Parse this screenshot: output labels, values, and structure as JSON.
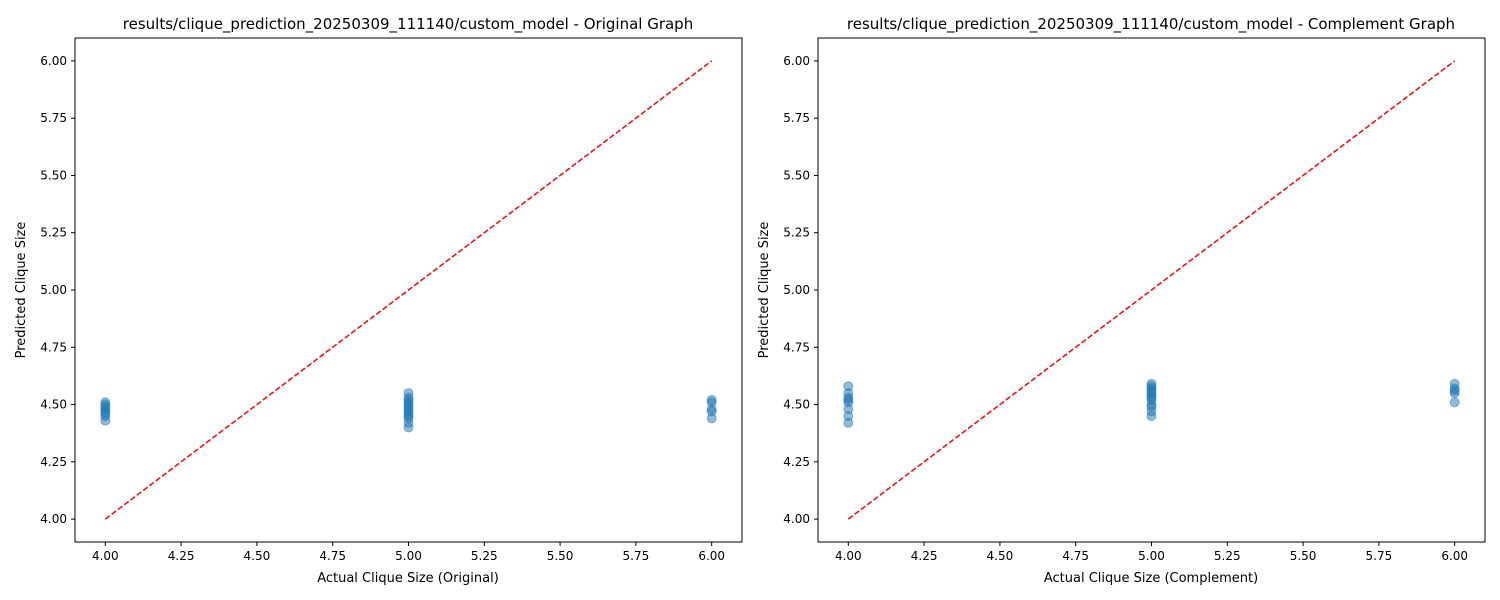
{
  "chart_data": [
    {
      "type": "scatter",
      "title": "results/clique_prediction_20250309_111140/custom_model - Original Graph",
      "xlabel": "Actual Clique Size (Original)",
      "ylabel": "Predicted Clique Size",
      "xlim": [
        3.9,
        6.1
      ],
      "ylim": [
        3.9,
        6.1
      ],
      "xticks": [
        "4.00",
        "4.25",
        "4.50",
        "4.75",
        "5.00",
        "5.25",
        "5.50",
        "5.75",
        "6.00"
      ],
      "yticks": [
        "4.00",
        "4.25",
        "4.50",
        "4.75",
        "5.00",
        "5.25",
        "5.50",
        "5.75",
        "6.00"
      ],
      "grid": false,
      "points": [
        {
          "x": 4,
          "y": 4.43
        },
        {
          "x": 4,
          "y": 4.45
        },
        {
          "x": 4,
          "y": 4.46
        },
        {
          "x": 4,
          "y": 4.47
        },
        {
          "x": 4,
          "y": 4.48
        },
        {
          "x": 4,
          "y": 4.49
        },
        {
          "x": 4,
          "y": 4.5
        },
        {
          "x": 4,
          "y": 4.51
        },
        {
          "x": 5,
          "y": 4.4
        },
        {
          "x": 5,
          "y": 4.42
        },
        {
          "x": 5,
          "y": 4.44
        },
        {
          "x": 5,
          "y": 4.45
        },
        {
          "x": 5,
          "y": 4.46
        },
        {
          "x": 5,
          "y": 4.47
        },
        {
          "x": 5,
          "y": 4.48
        },
        {
          "x": 5,
          "y": 4.49
        },
        {
          "x": 5,
          "y": 4.5
        },
        {
          "x": 5,
          "y": 4.51
        },
        {
          "x": 5,
          "y": 4.52
        },
        {
          "x": 5,
          "y": 4.53
        },
        {
          "x": 5,
          "y": 4.55
        },
        {
          "x": 6,
          "y": 4.44
        },
        {
          "x": 6,
          "y": 4.47
        },
        {
          "x": 6,
          "y": 4.48
        },
        {
          "x": 6,
          "y": 4.51
        },
        {
          "x": 6,
          "y": 4.52
        }
      ],
      "reference_line": {
        "x": [
          4,
          6
        ],
        "y": [
          4,
          6
        ]
      }
    },
    {
      "type": "scatter",
      "title": "results/clique_prediction_20250309_111140/custom_model - Complement Graph",
      "xlabel": "Actual Clique Size (Complement)",
      "ylabel": "Predicted Clique Size",
      "xlim": [
        3.9,
        6.1
      ],
      "ylim": [
        3.9,
        6.1
      ],
      "xticks": [
        "4.00",
        "4.25",
        "4.50",
        "4.75",
        "5.00",
        "5.25",
        "5.50",
        "5.75",
        "6.00"
      ],
      "yticks": [
        "4.00",
        "4.25",
        "4.50",
        "4.75",
        "5.00",
        "5.25",
        "5.50",
        "5.75",
        "6.00"
      ],
      "grid": false,
      "points": [
        {
          "x": 4,
          "y": 4.42
        },
        {
          "x": 4,
          "y": 4.45
        },
        {
          "x": 4,
          "y": 4.48
        },
        {
          "x": 4,
          "y": 4.51
        },
        {
          "x": 4,
          "y": 4.52
        },
        {
          "x": 4,
          "y": 4.53
        },
        {
          "x": 4,
          "y": 4.55
        },
        {
          "x": 4,
          "y": 4.58
        },
        {
          "x": 5,
          "y": 4.45
        },
        {
          "x": 5,
          "y": 4.47
        },
        {
          "x": 5,
          "y": 4.49
        },
        {
          "x": 5,
          "y": 4.5
        },
        {
          "x": 5,
          "y": 4.52
        },
        {
          "x": 5,
          "y": 4.53
        },
        {
          "x": 5,
          "y": 4.54
        },
        {
          "x": 5,
          "y": 4.55
        },
        {
          "x": 5,
          "y": 4.56
        },
        {
          "x": 5,
          "y": 4.57
        },
        {
          "x": 5,
          "y": 4.58
        },
        {
          "x": 5,
          "y": 4.59
        },
        {
          "x": 6,
          "y": 4.51
        },
        {
          "x": 6,
          "y": 4.55
        },
        {
          "x": 6,
          "y": 4.56
        },
        {
          "x": 6,
          "y": 4.57
        },
        {
          "x": 6,
          "y": 4.59
        }
      ],
      "reference_line": {
        "x": [
          4,
          6
        ],
        "y": [
          4,
          6
        ]
      }
    }
  ],
  "colors": {
    "points": "#1f77b4",
    "reference_line": "#ff0000",
    "axes": "#000000"
  }
}
